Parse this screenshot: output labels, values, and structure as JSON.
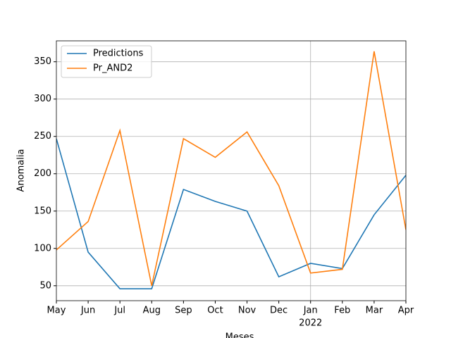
{
  "chart_data": {
    "type": "line",
    "categories": [
      "May",
      "Jun",
      "Jul",
      "Aug",
      "Sep",
      "Oct",
      "Nov",
      "Dec",
      "Jan",
      "Feb",
      "Mar",
      "Apr"
    ],
    "year_marker": {
      "category": "Jan",
      "label": "2022"
    },
    "series": [
      {
        "name": "Predictions",
        "color": "#1f77b4",
        "values": [
          247,
          95,
          46,
          46,
          179,
          163,
          150,
          62,
          80,
          73,
          145,
          198
        ]
      },
      {
        "name": "Pr_AND2",
        "color": "#ff7f0e",
        "values": [
          98,
          136,
          258,
          50,
          247,
          222,
          256,
          184,
          67,
          72,
          364,
          125
        ]
      }
    ],
    "xlabel": "Meses",
    "ylabel": "Anomalia",
    "ylim": [
      30,
      378
    ],
    "yticks": [
      50,
      100,
      150,
      200,
      250,
      300,
      350
    ],
    "grid": true,
    "legend": "upper-left"
  }
}
